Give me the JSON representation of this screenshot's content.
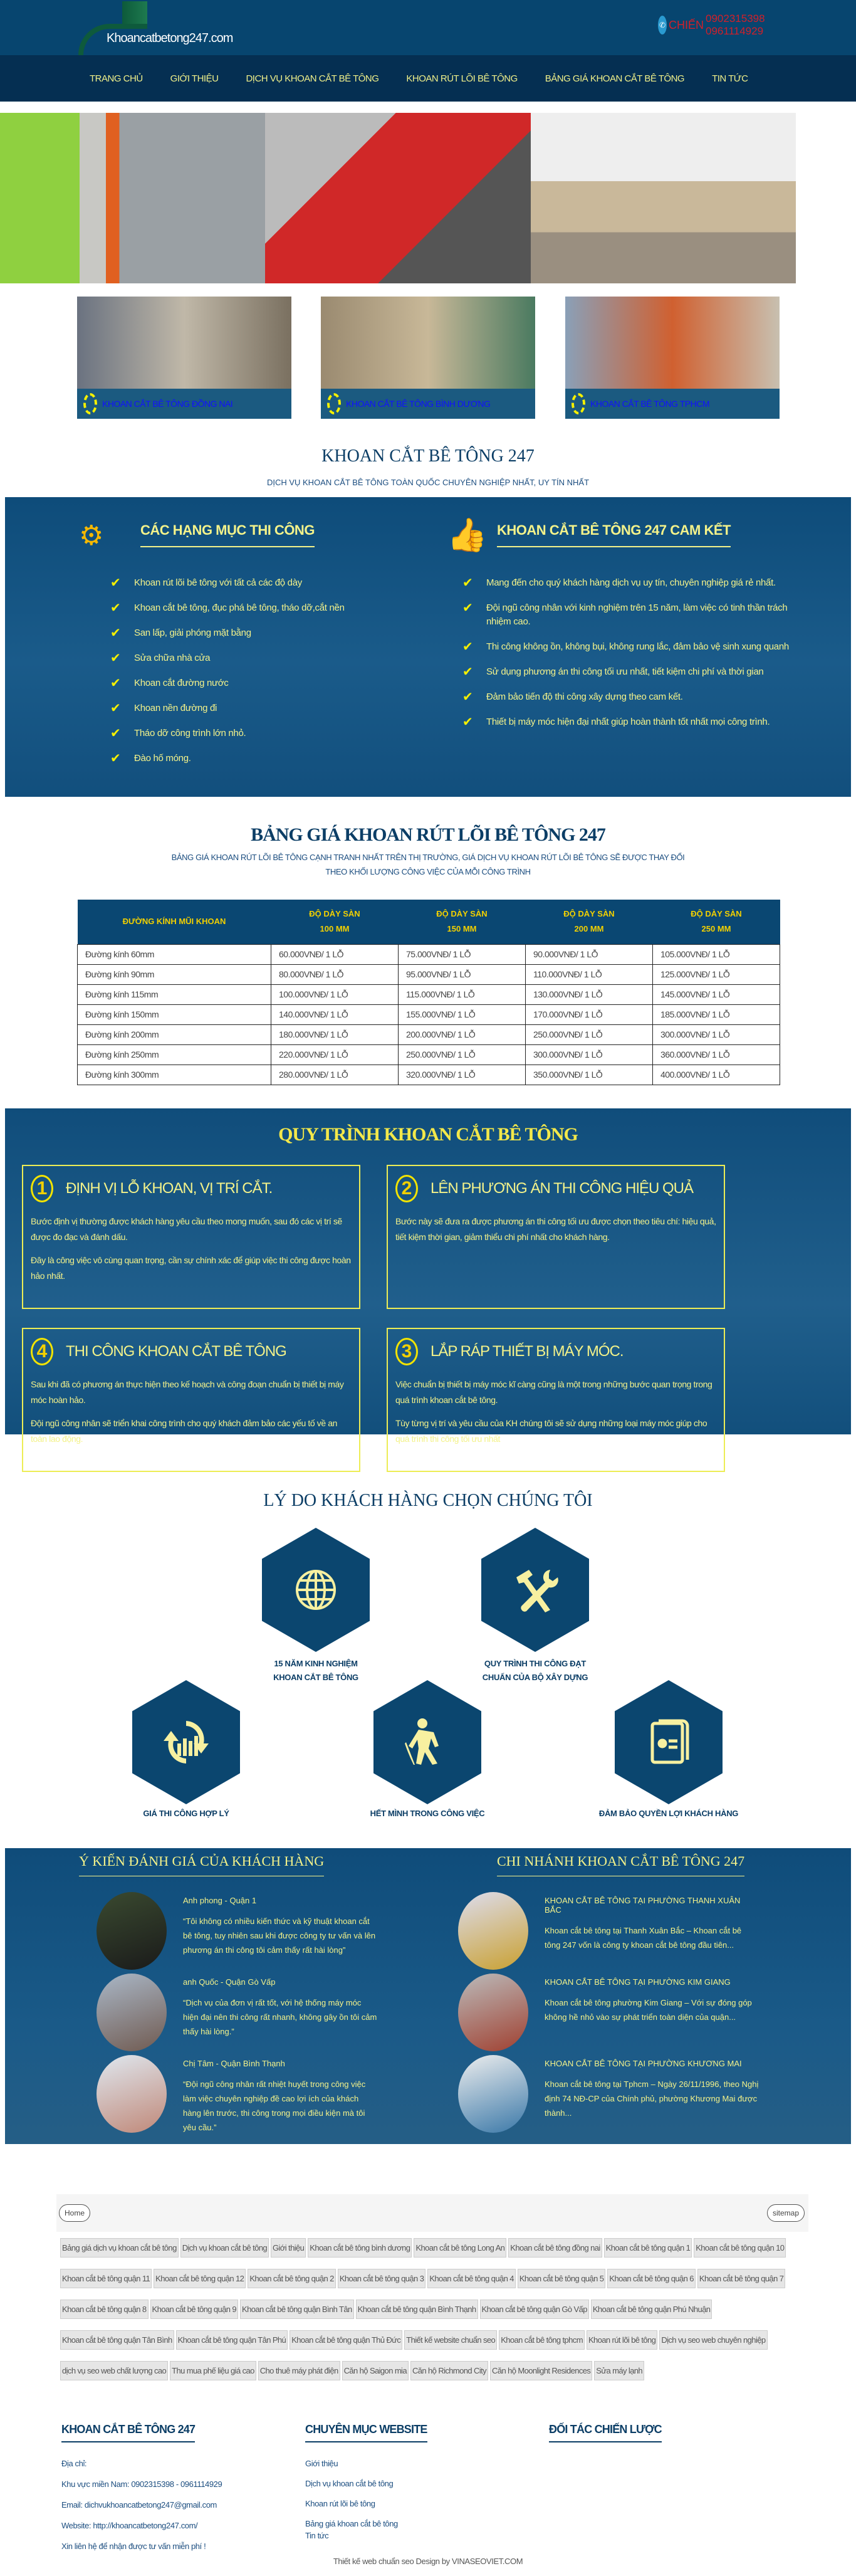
{
  "header": {
    "logo_text": "Khoancatbetong247.com",
    "contact_name": "CHIẾN",
    "phone1": "0902315398",
    "phone2": "0961114929"
  },
  "nav": [
    "TRANG CHỦ",
    "GIỚI THIỆU",
    "DỊCH VỤ KHOAN CẮT BÊ TÔNG",
    "KHOAN RÚT LÕI BÊ TÔNG",
    "BẢNG GIÁ KHOAN CẮT BÊ TÔNG",
    "TIN TỨC"
  ],
  "cards": [
    "KHOAN CẮT BÊ TÔNG ĐỒNG NAI",
    "KHOAN CẮT BÊ TÔNG BÌNH DƯƠNG",
    "KHOAN CẮT BÊ TÔNG TPHCM"
  ],
  "intro": {
    "title": "KHOAN CẮT BÊ TÔNG 247",
    "subtitle": "DỊCH VỤ KHOAN CẮT BÊ TÔNG TOÀN QUỐC CHUYÊN NGHIỆP NHẤT, UY TÍN NHẤT"
  },
  "services": {
    "title": "CÁC HẠNG MỤC THI CÔNG",
    "items": [
      "Khoan rút lõi bê tông với tất cả các độ dày",
      "Khoan cắt bê tông, đục phá bê tông, tháo dỡ,cắt nền",
      "San lấp, giải phóng mặt bằng",
      "Sửa chữa nhà cửa",
      "Khoan cắt đường nước",
      "Khoan nền đường đi",
      "Tháo dỡ công trình lớn nhỏ.",
      "Đào hố móng."
    ]
  },
  "commit": {
    "title": "KHOAN CẮT BÊ TÔNG 247 CAM KẾT",
    "items": [
      "Mang đến cho quý khách hàng dịch vụ uy tín, chuyên nghiệp giá rẻ nhất.",
      "Đội ngũ công nhân với kinh nghiệm trên 15 năm, làm việc có tinh thần trách nhiệm cao.",
      "Thi công không ồn, không bụi, không rung lắc, đảm bảo vệ sinh xung quanh",
      "Sử dụng phương án thi công tối ưu nhất, tiết kiệm chi phí và thời gian",
      "Đảm bảo tiến độ thi công xây dựng theo cam kết.",
      "Thiết bị máy móc hiện đại nhất giúp hoàn thành tốt nhất mọi công trình."
    ]
  },
  "pricing": {
    "title": "BẢNG GIÁ KHOAN RÚT LÕI BÊ TÔNG 247",
    "subtitle1": "BẢNG GIÁ KHOAN RÚT LÕI BÊ TÔNG CẠNH TRANH NHẤT TRÊN THỊ TRƯỜNG, GIÁ DỊCH VỤ KHOAN RÚT LÕI BÊ TÔNG SẼ ĐƯỢC THAY ĐỔI",
    "subtitle2": "THEO KHỐI LƯỢNG CÔNG VIỆC CỦA MỖI CÔNG TRÌNH",
    "headers": [
      [
        "ĐƯỜNG KÍNH MŨI KHOAN",
        ""
      ],
      [
        "ĐỘ DÀY SÀN",
        "100 MM"
      ],
      [
        "ĐỘ DÀY SÀN",
        "150 MM"
      ],
      [
        "ĐỘ DÀY SÀN",
        "200 MM"
      ],
      [
        "ĐỘ DÀY SÀN",
        "250 MM"
      ]
    ],
    "rows": [
      [
        "Đường kính 60mm",
        "60.000VNĐ/ 1 LỖ",
        "75.000VNĐ/ 1 LỖ",
        "90.000VNĐ/ 1 LỖ",
        "105.000VNĐ/ 1 LỖ"
      ],
      [
        "Đường kính 90mm",
        "80.000VNĐ/ 1 LỖ",
        "95.000VNĐ/ 1 LỖ",
        "110.000VNĐ/ 1 LỖ",
        "125.000VNĐ/ 1 LỖ"
      ],
      [
        "Đường kính 115mm",
        "100.000VNĐ/ 1 LỖ",
        "115.000VNĐ/ 1 LỖ",
        "130.000VNĐ/ 1 LỖ",
        "145.000VNĐ/ 1 LỖ"
      ],
      [
        "Đường kính 150mm",
        "140.000VNĐ/ 1 LỖ",
        "155.000VNĐ/ 1 LỖ",
        "170.000VNĐ/ 1 LỖ",
        "185.000VNĐ/ 1 LỖ"
      ],
      [
        "Đường kính 200mm",
        "180.000VNĐ/ 1 LỖ",
        "200.000VNĐ/ 1 LỖ",
        "250.000VNĐ/ 1 LỖ",
        "300.000VNĐ/ 1 LỖ"
      ],
      [
        "Đường kính 250mm",
        "220.000VNĐ/ 1 LỖ",
        "250.000VNĐ/ 1 LỖ",
        "300.000VNĐ/ 1 LỖ",
        "360.000VNĐ/ 1 LỖ"
      ],
      [
        "Đường kính 300mm",
        "280.000VNĐ/ 1 LỖ",
        "320.000VNĐ/ 1 LỖ",
        "350.000VNĐ/ 1 LỖ",
        "400.000VNĐ/ 1 LỖ"
      ]
    ]
  },
  "process": {
    "title": "QUY TRÌNH KHOAN CẮT BÊ TÔNG",
    "steps": [
      {
        "num": "1",
        "title": "ĐỊNH VỊ LỖ KHOAN, VỊ TRÍ CẮT.",
        "p": [
          "Bước định vị thường được khách hàng yêu cầu theo mong muốn, sau đó các vị trí sẽ được đo đạc và đánh dấu.",
          "Đây là công việc vô cùng quan trọng, cần sự chính xác để giúp việc thi công được hoàn hảo nhất."
        ]
      },
      {
        "num": "2",
        "title": "LÊN PHƯƠNG ÁN THI CÔNG HIỆU QUẢ",
        "p": [
          "Bước này sẽ đưa ra được phương án thi công tối ưu được chọn theo tiêu chí: hiệu quả, tiết kiệm thời gian, giảm thiểu chi phí nhất cho khách hàng."
        ]
      },
      {
        "num": "4",
        "title": "THI CÔNG KHOAN CẮT BÊ TÔNG",
        "p": [
          "Sau khi đã có phương án thực hiện theo kế hoạch và công đoạn chuẩn bị thiết bị máy móc hoàn hảo.",
          "Đội ngũ công nhân sẽ triển khai công trình cho quý khách đảm bảo các yếu tố về an toàn lao động."
        ]
      },
      {
        "num": "3",
        "title": "LẮP RÁP THIẾT BỊ MÁY MÓC.",
        "p": [
          "Việc chuẩn bị thiết bị máy móc kĩ càng cũng là một trong những bước quan trọng trong quá trình khoan cắt bê tông.",
          "Tùy từng vị trí và yêu cầu của KH chúng tôi sẽ sử dụng những loại máy móc giúp cho quá trình thi công tối ưu nhất"
        ]
      }
    ]
  },
  "reasons": {
    "title": "LÝ DO KHÁCH HÀNG CHỌN CHÚNG TÔI",
    "items": [
      {
        "icon": "globe-icon",
        "label": "15 NĂM KINH NGHIỆM KHOAN CẮT BÊ TÔNG"
      },
      {
        "icon": "tools-icon",
        "label": "QUY TRÌNH THI CÔNG ĐẠT CHUẨN CỦA BỘ XÂY DỰNG"
      },
      {
        "icon": "chart-cycle-icon",
        "label": "GIÁ THI CÔNG HỢP LÝ"
      },
      {
        "icon": "worker-icon",
        "label": "HẾT MÌNH TRONG CÔNG VIỆC"
      },
      {
        "icon": "certificate-icon",
        "label": "ĐẢM BẢO QUYỀN LỢI KHÁCH HÀNG"
      }
    ]
  },
  "testimonials": {
    "title": "Ý KIẾN ĐÁNH GIÁ CỦA KHÁCH HÀNG",
    "items": [
      {
        "name": "Anh phong - Quận 1",
        "quote": "“Tôi không có nhiều kiến thức và kỹ thuật khoan cắt bê tông, tuy nhiên sau khi được công ty tư vấn và lên phương án thi công tôi cảm thấy rất hài lòng”"
      },
      {
        "name": "anh Quốc - Quận Gò Vấp",
        "quote": "“Dịch vụ của đơn vị rất tốt, với hệ thống máy móc hiện đại nên thi công rất nhanh, không gây ồn tôi cảm thấy hài lòng.”"
      },
      {
        "name": "Chị Tâm - Quận Bình Thạnh",
        "quote": "“Đội ngũ công nhân rất nhiệt huyết trong công việc làm việc chuyên nghiệp đề cao lợi ích của khách hàng lên trước, thi công trong mọi điều kiện mà tôi yêu cầu.”"
      }
    ]
  },
  "branches": {
    "title": "CHI NHÁNH KHOAN CẮT BÊ TÔNG 247",
    "items": [
      {
        "name": "KHOAN CẮT BÊ TÔNG TẠI PHƯỜNG THANH XUÂN BẮC",
        "text": "Khoan cắt bê tông tại Thanh Xuân Bắc – Khoan cắt bê tông 247 vốn là công ty khoan cắt bê tông đầu tiên..."
      },
      {
        "name": "KHOAN CẮT BÊ TÔNG TẠI PHƯỜNG KIM GIANG",
        "text": "Khoan cắt bê tông phường Kim Giang – Với sự đóng góp không hề nhỏ vào sự phát triển toàn diện của quận..."
      },
      {
        "name": "KHOAN CẮT BÊ TÔNG TẠI PHƯỜNG KHƯƠNG MAI",
        "text": "Khoan cắt bê tông tại Tphcm – Ngày 26/11/1996, theo Nghị định 74 NĐ-CP của Chính phủ, phường Khương Mai được thành..."
      }
    ]
  },
  "footer_bar": {
    "home": "Home",
    "sitemap": "sitemap"
  },
  "tags": [
    "Bảng giá dịch vụ khoan cắt bê tông",
    "Dịch vụ khoan cắt bê tông",
    "Giới thiệu",
    "Khoan cắt bê tông bình dương",
    "Khoan cắt bê tông Long An",
    "Khoan cắt bê tông đồng nai",
    "Khoan cắt bê tông quận 1",
    "Khoan cắt bê tông quận 10",
    "Khoan cắt bê tông quận 11",
    "Khoan cắt bê tông quận 12",
    "Khoan cắt bê tông quận 2",
    "Khoan cắt bê tông quận 3",
    "Khoan cắt bê tông quận 4",
    "Khoan cắt bê tông quận 5",
    "Khoan cắt bê tông quận 6",
    "Khoan cắt bê tông quận 7",
    "Khoan cắt bê tông quận 8",
    "Khoan cắt bê tông quận 9",
    "Khoan cắt bê tông quận Bình Tân",
    "Khoan cắt bê tông quận Bình Thạnh",
    "Khoan cắt bê tông quận Gò Vấp",
    "Khoan cắt bê tông quận Phú Nhuận",
    "Khoan cắt bê tông quận Tân Bình",
    "Khoan cắt bê tông quận Tân Phú",
    "Khoan cắt bê tông quận Thủ Đức",
    "Thiết kế website chuẩn seo",
    "Khoan cắt bê tông tphcm",
    "Khoan rút lõi bê tông",
    "Dịch vụ seo web chuyên nghiệp",
    "dịch vụ seo web chất lượng cao",
    "Thu mua phế liệu giá cao",
    "Cho thuê máy phát điện",
    "Căn hộ Saigon mia",
    "Căn hộ Richmond City",
    "Căn hộ Moonlight Residences",
    "Sửa máy lạnh"
  ],
  "footer": {
    "col1": {
      "title": "KHOAN CẮT BÊ TÔNG 247",
      "lines": [
        "Địa chỉ:",
        "Khu vực miền Nam: 0902315398 - 0961114929",
        "Email: dichvukhoancatbetong247@gmail.com",
        "Website: http://khoancatbetong247.com/",
        "Xin liên hệ để nhận được tư vấn miễn phí !"
      ]
    },
    "col2": {
      "title": "CHUYÊN MỤC WEBSITE",
      "links": [
        "Giới thiệu",
        "Dịch vụ khoan cắt bê tông",
        "Khoan rút lõi bê tông",
        "Bảng giá khoan cắt bê tông",
        "Tin tức"
      ]
    },
    "col3": {
      "title": "ĐỐI TÁC CHIẾN LƯỢC"
    },
    "credit": "Thiết kế web chuẩn seo Design by VINASEOVIET.COM"
  },
  "colors": {
    "header": "#07456f",
    "nav": "#052f52",
    "accent": "#f3f28a",
    "title": "#0c3e66"
  }
}
